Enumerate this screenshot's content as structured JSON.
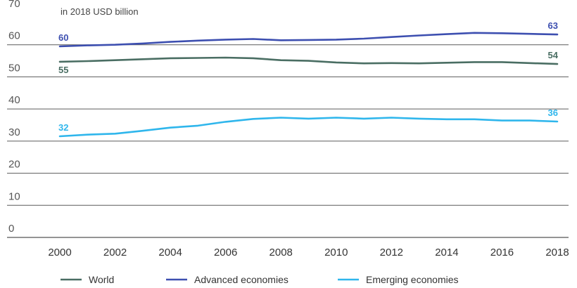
{
  "chart_data": {
    "type": "line",
    "unit_note": "in 2018 USD billion",
    "x": [
      2000,
      2001,
      2002,
      2003,
      2004,
      2005,
      2006,
      2007,
      2008,
      2009,
      2010,
      2011,
      2012,
      2013,
      2014,
      2015,
      2016,
      2017,
      2018
    ],
    "xticks": [
      2000,
      2002,
      2004,
      2006,
      2008,
      2010,
      2012,
      2014,
      2016,
      2018
    ],
    "yticks": [
      0,
      10,
      20,
      30,
      40,
      50,
      60,
      70
    ],
    "ylim": [
      0,
      70
    ],
    "xlim": [
      2000,
      2018
    ],
    "grid": true,
    "legend_position": "bottom",
    "series": [
      {
        "name": "World",
        "color": "#4a6e63",
        "values": [
          54.7,
          54.9,
          55.2,
          55.5,
          55.8,
          55.9,
          56.0,
          55.8,
          55.2,
          55.0,
          54.5,
          54.2,
          54.3,
          54.2,
          54.4,
          54.6,
          54.6,
          54.3,
          54.0
        ],
        "start_label": "55",
        "end_label": "54"
      },
      {
        "name": "Advanced economies",
        "color": "#3d4fb0",
        "values": [
          59.5,
          59.8,
          60.0,
          60.4,
          60.9,
          61.3,
          61.6,
          61.8,
          61.4,
          61.5,
          61.6,
          61.9,
          62.4,
          62.9,
          63.3,
          63.7,
          63.6,
          63.4,
          63.2
        ],
        "start_label": "60",
        "end_label": "63"
      },
      {
        "name": "Emerging economies",
        "color": "#2fb6ec",
        "values": [
          31.5,
          32.0,
          32.3,
          33.2,
          34.2,
          34.8,
          36.0,
          36.9,
          37.3,
          37.0,
          37.3,
          37.0,
          37.3,
          37.0,
          36.8,
          36.8,
          36.4,
          36.4,
          36.1
        ],
        "start_label": "32",
        "end_label": "36"
      }
    ]
  }
}
